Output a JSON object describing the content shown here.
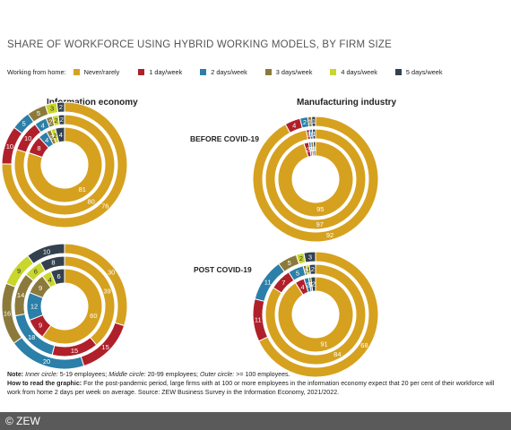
{
  "title": "SHARE OF WORKFORCE USING HYBRID WORKING MODELS, BY FIRM SIZE",
  "legend_lead": "Working from home:",
  "categories": [
    "Never/rarely",
    "1 day/week",
    "2 days/week",
    "3 days/week",
    "4 days/week",
    "5 days/week"
  ],
  "colors": [
    "#d6a11f",
    "#b0202a",
    "#2b7fa8",
    "#8c7a3c",
    "#c9d62a",
    "#33414f"
  ],
  "panel_titles": [
    "Information economy",
    "Manufacturing industry"
  ],
  "row_titles": [
    "BEFORE COVID-19",
    "POST COVID-19"
  ],
  "chart_data": {
    "type": "donut",
    "title": "SHARE OF WORKFORCE USING HYBRID WORKING MODELS, BY FIRM SIZE",
    "categories": [
      "Never/rarely",
      "1 day/week",
      "2 days/week",
      "3 days/week",
      "4 days/week",
      "5 days/week"
    ],
    "rings": [
      "5-19 employees (inner)",
      "20-99 employees (middle)",
      ">= 100 employees (outer)"
    ],
    "panels": [
      {
        "sector": "Information economy",
        "period": "BEFORE COVID-19",
        "rings": [
          [
            81,
            8,
            4,
            2,
            2,
            4
          ],
          [
            80,
            10,
            4,
            2,
            2,
            2
          ],
          [
            76,
            10,
            5,
            5,
            3,
            2
          ]
        ]
      },
      {
        "sector": "Manufacturing industry",
        "period": "BEFORE COVID-19",
        "rings": [
          [
            95,
            2,
            1,
            1,
            0,
            1
          ],
          [
            97,
            1,
            1,
            0,
            0,
            1
          ],
          [
            92,
            4,
            2,
            1,
            0,
            1
          ]
        ]
      },
      {
        "sector": "Information economy",
        "period": "POST COVID-19",
        "rings": [
          [
            60,
            9,
            12,
            9,
            4,
            6
          ],
          [
            39,
            15,
            18,
            14,
            6,
            8
          ],
          [
            30,
            15,
            20,
            16,
            9,
            10
          ]
        ]
      },
      {
        "sector": "Manufacturing industry",
        "period": "POST COVID-19",
        "rings": [
          [
            91,
            4,
            2,
            1,
            0,
            2
          ],
          [
            84,
            7,
            5,
            1,
            1,
            2
          ],
          [
            68,
            11,
            11,
            5,
            2,
            3
          ]
        ]
      }
    ]
  },
  "notes": {
    "note_label": "Note:",
    "note_inner_label": "Inner circle:",
    "note_inner": "5-19 employees;",
    "note_middle_label": "Middle circle:",
    "note_middle": "20-99 employees;",
    "note_outer_label": "Outer circle:",
    "note_outer": ">= 100 employees.",
    "howto_label": "How to read the graphic:",
    "howto_text": "For the post-pandemic period, large firms with at 100 or more employees in the information economy expect that 20 per cent of their workforce will work from home 2 days per week on average. Source: ZEW Business Survey in the Information Economy, 2021/2022."
  },
  "footer": "© ZEW"
}
